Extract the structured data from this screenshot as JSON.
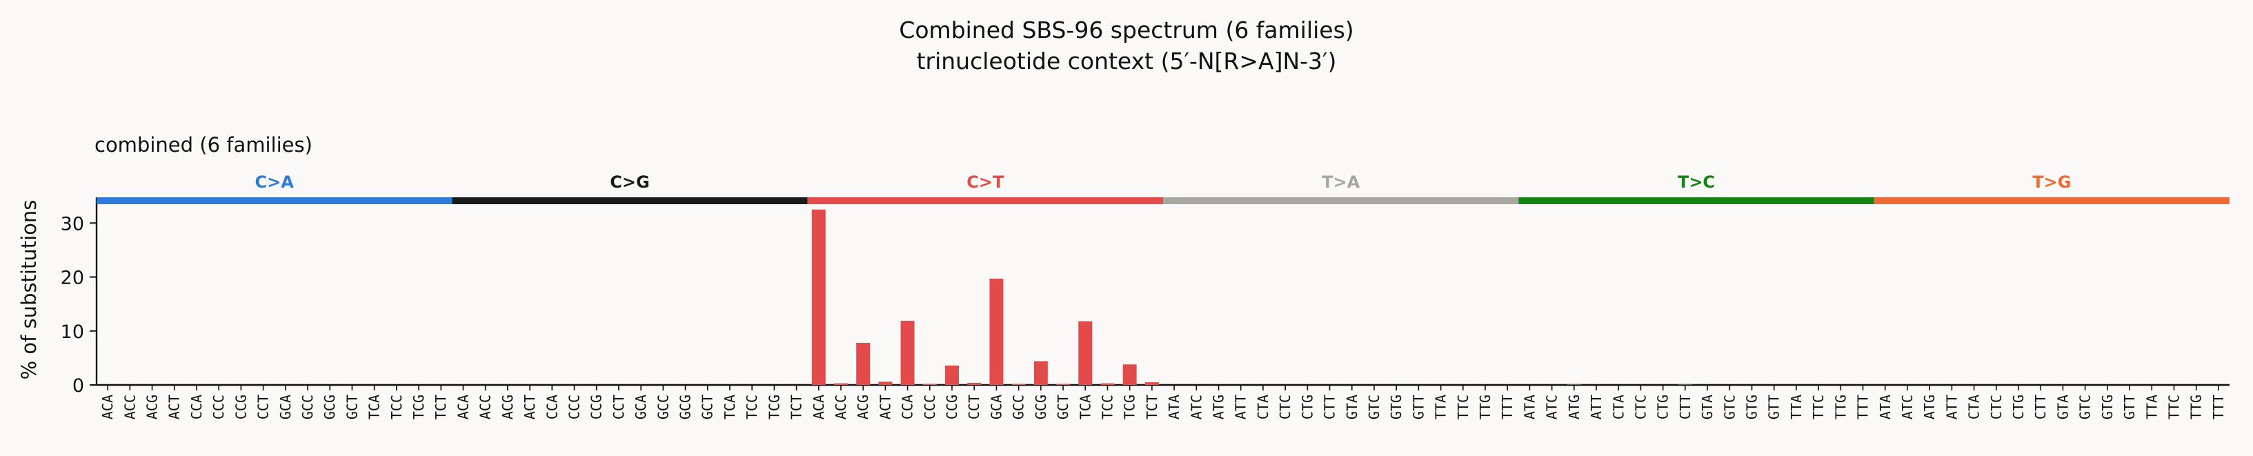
{
  "chart_data": {
    "type": "bar",
    "title": "Combined SBS-96 spectrum (6 families)",
    "subtitle": "trinucleotide context (5′-N[R>A]N-3′)",
    "panel_label": "combined (6 families)",
    "ylabel": "% of substitutions",
    "xlabel": "",
    "ylim": [
      0,
      34
    ],
    "yticks": [
      0,
      10,
      20,
      30
    ],
    "grid": false,
    "legend": "none",
    "groups": [
      {
        "name": "C>A",
        "color": "#2f7ad9",
        "contexts": [
          "ACA",
          "ACC",
          "ACG",
          "ACT",
          "CCA",
          "CCC",
          "CCG",
          "CCT",
          "GCA",
          "GCC",
          "GCG",
          "GCT",
          "TCA",
          "TCC",
          "TCG",
          "TCT"
        ],
        "values": [
          0,
          0,
          0,
          0,
          0,
          0,
          0,
          0,
          0,
          0,
          0,
          0,
          0,
          0,
          0,
          0
        ]
      },
      {
        "name": "C>G",
        "color": "#1a1a1a",
        "contexts": [
          "ACA",
          "ACC",
          "ACG",
          "ACT",
          "CCA",
          "CCC",
          "CCG",
          "CCT",
          "GCA",
          "GCC",
          "GCG",
          "GCT",
          "TCA",
          "TCC",
          "TCG",
          "TCT"
        ],
        "values": [
          0,
          0,
          0,
          0,
          0,
          0,
          0,
          0,
          0,
          0,
          0,
          0,
          0,
          0,
          0,
          0
        ]
      },
      {
        "name": "C>T",
        "color": "#e34a4a",
        "contexts": [
          "ACA",
          "ACC",
          "ACG",
          "ACT",
          "CCA",
          "CCC",
          "CCG",
          "CCT",
          "GCA",
          "GCC",
          "GCG",
          "GCT",
          "TCA",
          "TCC",
          "TCG",
          "TCT"
        ],
        "values": [
          32.5,
          0.3,
          7.8,
          0.6,
          11.9,
          0.2,
          3.6,
          0.4,
          19.7,
          0.2,
          4.4,
          0.2,
          11.8,
          0.3,
          3.8,
          0.5
        ]
      },
      {
        "name": "T>A",
        "color": "#a8a6a0",
        "contexts": [
          "ATA",
          "ATC",
          "ATG",
          "ATT",
          "CTA",
          "CTC",
          "CTG",
          "CTT",
          "GTA",
          "GTC",
          "GTG",
          "GTT",
          "TTA",
          "TTC",
          "TTG",
          "TTT"
        ],
        "values": [
          0,
          0,
          0,
          0,
          0,
          0,
          0,
          0,
          0,
          0,
          0,
          0,
          0,
          0,
          0,
          0
        ]
      },
      {
        "name": "T>C",
        "color": "#138413",
        "contexts": [
          "ATA",
          "ATC",
          "ATG",
          "ATT",
          "CTA",
          "CTC",
          "CTG",
          "CTT",
          "GTA",
          "GTC",
          "GTG",
          "GTT",
          "TTA",
          "TTC",
          "TTG",
          "TTT"
        ],
        "values": [
          0,
          0,
          0.15,
          0,
          0,
          0,
          0,
          0.15,
          0,
          0,
          0,
          0,
          0,
          0,
          0,
          0
        ]
      },
      {
        "name": "T>G",
        "color": "#ef6a34",
        "contexts": [
          "ATA",
          "ATC",
          "ATG",
          "ATT",
          "CTA",
          "CTC",
          "CTG",
          "CTT",
          "GTA",
          "GTC",
          "GTG",
          "GTT",
          "TTA",
          "TTC",
          "TTG",
          "TTT"
        ],
        "values": [
          0,
          0,
          0,
          0,
          0,
          0,
          0,
          0,
          0,
          0,
          0,
          0,
          0,
          0,
          0,
          0
        ]
      }
    ]
  }
}
